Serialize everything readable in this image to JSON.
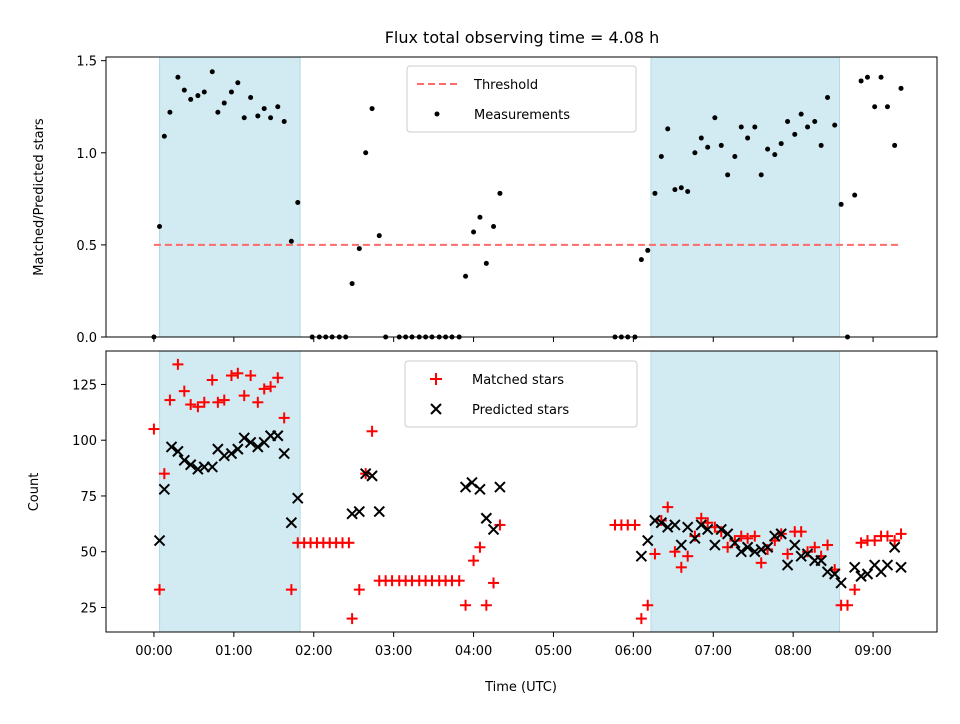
{
  "title": "Flux total observing time = 4.08 h",
  "colors": {
    "shade": "#add8e6",
    "threshold": "#ff6b6b",
    "measurement": "#000000",
    "matched": "#ff0000",
    "predicted": "#000000"
  },
  "chart_data": [
    {
      "type": "scatter",
      "ylabel": "Matched/Predicted stars",
      "xlim": [
        -0.6,
        9.8
      ],
      "ylim": [
        0,
        1.52
      ],
      "yticks": [
        0.0,
        0.5,
        1.0,
        1.5
      ],
      "ytick_labels": [
        "0.0",
        "0.5",
        "1.0",
        "1.5"
      ],
      "legend_position": "top-center",
      "shaded_intervals": [
        [
          0.07,
          1.83
        ],
        [
          6.22,
          8.58
        ]
      ],
      "threshold": {
        "name": "Threshold",
        "value": 0.5,
        "x_range": [
          0.0,
          9.33
        ]
      },
      "series": [
        {
          "name": "Measurements",
          "points": [
            [
              0.0,
              0.0
            ],
            [
              0.07,
              0.6
            ],
            [
              0.13,
              1.09
            ],
            [
              0.2,
              1.22
            ],
            [
              0.3,
              1.41
            ],
            [
              0.38,
              1.34
            ],
            [
              0.46,
              1.29
            ],
            [
              0.55,
              1.31
            ],
            [
              0.63,
              1.33
            ],
            [
              0.73,
              1.44
            ],
            [
              0.8,
              1.22
            ],
            [
              0.88,
              1.27
            ],
            [
              0.97,
              1.33
            ],
            [
              1.05,
              1.38
            ],
            [
              1.13,
              1.19
            ],
            [
              1.21,
              1.3
            ],
            [
              1.3,
              1.2
            ],
            [
              1.38,
              1.24
            ],
            [
              1.46,
              1.19
            ],
            [
              1.55,
              1.25
            ],
            [
              1.63,
              1.17
            ],
            [
              1.72,
              0.52
            ],
            [
              1.8,
              0.73
            ],
            [
              1.98,
              0.0
            ],
            [
              2.07,
              0.0
            ],
            [
              2.15,
              0.0
            ],
            [
              2.23,
              0.0
            ],
            [
              2.32,
              0.0
            ],
            [
              2.4,
              0.0
            ],
            [
              2.48,
              0.29
            ],
            [
              2.57,
              0.48
            ],
            [
              2.65,
              1.0
            ],
            [
              2.73,
              1.24
            ],
            [
              2.82,
              0.55
            ],
            [
              2.9,
              0.0
            ],
            [
              3.07,
              0.0
            ],
            [
              3.15,
              0.0
            ],
            [
              3.23,
              0.0
            ],
            [
              3.32,
              0.0
            ],
            [
              3.4,
              0.0
            ],
            [
              3.48,
              0.0
            ],
            [
              3.57,
              0.0
            ],
            [
              3.65,
              0.0
            ],
            [
              3.73,
              0.0
            ],
            [
              3.82,
              0.0
            ],
            [
              3.9,
              0.33
            ],
            [
              4.0,
              0.57
            ],
            [
              4.08,
              0.65
            ],
            [
              4.16,
              0.4
            ],
            [
              4.25,
              0.6
            ],
            [
              4.33,
              0.78
            ],
            [
              5.77,
              0.0
            ],
            [
              5.85,
              0.0
            ],
            [
              5.93,
              0.0
            ],
            [
              6.02,
              0.0
            ],
            [
              6.1,
              0.42
            ],
            [
              6.18,
              0.47
            ],
            [
              6.27,
              0.78
            ],
            [
              6.35,
              0.98
            ],
            [
              6.43,
              1.13
            ],
            [
              6.52,
              0.8
            ],
            [
              6.6,
              0.81
            ],
            [
              6.68,
              0.79
            ],
            [
              6.77,
              1.0
            ],
            [
              6.85,
              1.08
            ],
            [
              6.93,
              1.03
            ],
            [
              7.02,
              1.19
            ],
            [
              7.1,
              1.04
            ],
            [
              7.18,
              0.88
            ],
            [
              7.27,
              0.98
            ],
            [
              7.35,
              1.14
            ],
            [
              7.43,
              1.08
            ],
            [
              7.52,
              1.14
            ],
            [
              7.6,
              0.88
            ],
            [
              7.68,
              1.02
            ],
            [
              7.77,
              0.99
            ],
            [
              7.85,
              1.05
            ],
            [
              7.93,
              1.17
            ],
            [
              8.02,
              1.1
            ],
            [
              8.1,
              1.21
            ],
            [
              8.18,
              1.14
            ],
            [
              8.27,
              1.17
            ],
            [
              8.35,
              1.04
            ],
            [
              8.43,
              1.3
            ],
            [
              8.52,
              1.15
            ],
            [
              8.6,
              0.72
            ],
            [
              8.68,
              0.0
            ],
            [
              8.77,
              0.77
            ],
            [
              8.85,
              1.39
            ],
            [
              8.93,
              1.41
            ],
            [
              9.02,
              1.25
            ],
            [
              9.1,
              1.41
            ],
            [
              9.18,
              1.25
            ],
            [
              9.27,
              1.04
            ],
            [
              9.35,
              1.35
            ]
          ]
        }
      ]
    },
    {
      "type": "scatter",
      "xlabel": "Time (UTC)",
      "ylabel": "Count",
      "xlim": [
        -0.6,
        9.8
      ],
      "ylim": [
        14,
        140
      ],
      "xticks": [
        0,
        1,
        2,
        3,
        4,
        5,
        6,
        7,
        8,
        9
      ],
      "xtick_labels": [
        "00:00",
        "01:00",
        "02:00",
        "03:00",
        "04:00",
        "05:00",
        "06:00",
        "07:00",
        "08:00",
        "09:00"
      ],
      "yticks": [
        25,
        50,
        75,
        100,
        125
      ],
      "ytick_labels": [
        "25",
        "50",
        "75",
        "100",
        "125"
      ],
      "legend_position": "top-center",
      "shaded_intervals": [
        [
          0.07,
          1.83
        ],
        [
          6.22,
          8.58
        ]
      ],
      "series": [
        {
          "name": "Matched stars",
          "marker": "plus",
          "points": [
            [
              0.0,
              105
            ],
            [
              0.07,
              33
            ],
            [
              0.13,
              85
            ],
            [
              0.2,
              118
            ],
            [
              0.3,
              134
            ],
            [
              0.38,
              122
            ],
            [
              0.46,
              116
            ],
            [
              0.55,
              115
            ],
            [
              0.63,
              117
            ],
            [
              0.73,
              127
            ],
            [
              0.8,
              117
            ],
            [
              0.88,
              118
            ],
            [
              0.97,
              129
            ],
            [
              1.05,
              130
            ],
            [
              1.13,
              120
            ],
            [
              1.21,
              129
            ],
            [
              1.3,
              117
            ],
            [
              1.38,
              123
            ],
            [
              1.46,
              124
            ],
            [
              1.55,
              128
            ],
            [
              1.63,
              110
            ],
            [
              1.72,
              33
            ],
            [
              1.8,
              54
            ],
            [
              1.88,
              54
            ],
            [
              1.96,
              54
            ],
            [
              2.04,
              54
            ],
            [
              2.12,
              54
            ],
            [
              2.2,
              54
            ],
            [
              2.28,
              54
            ],
            [
              2.36,
              54
            ],
            [
              2.44,
              54
            ],
            [
              2.48,
              20
            ],
            [
              2.57,
              33
            ],
            [
              2.65,
              85
            ],
            [
              2.73,
              104
            ],
            [
              2.82,
              37
            ],
            [
              2.9,
              37
            ],
            [
              2.98,
              37
            ],
            [
              3.07,
              37
            ],
            [
              3.15,
              37
            ],
            [
              3.23,
              37
            ],
            [
              3.32,
              37
            ],
            [
              3.4,
              37
            ],
            [
              3.48,
              37
            ],
            [
              3.57,
              37
            ],
            [
              3.65,
              37
            ],
            [
              3.73,
              37
            ],
            [
              3.82,
              37
            ],
            [
              3.9,
              26
            ],
            [
              4.0,
              46
            ],
            [
              4.08,
              52
            ],
            [
              4.16,
              26
            ],
            [
              4.25,
              36
            ],
            [
              4.33,
              62
            ],
            [
              5.77,
              62
            ],
            [
              5.85,
              62
            ],
            [
              5.93,
              62
            ],
            [
              6.02,
              62
            ],
            [
              6.1,
              20
            ],
            [
              6.18,
              26
            ],
            [
              6.27,
              49
            ],
            [
              6.35,
              64
            ],
            [
              6.43,
              70
            ],
            [
              6.52,
              50
            ],
            [
              6.6,
              43
            ],
            [
              6.68,
              48
            ],
            [
              6.77,
              57
            ],
            [
              6.85,
              65
            ],
            [
              6.93,
              63
            ],
            [
              7.02,
              61
            ],
            [
              7.1,
              59
            ],
            [
              7.18,
              52
            ],
            [
              7.27,
              55
            ],
            [
              7.35,
              57
            ],
            [
              7.43,
              56
            ],
            [
              7.52,
              57
            ],
            [
              7.6,
              45
            ],
            [
              7.68,
              51
            ],
            [
              7.77,
              55
            ],
            [
              7.85,
              58
            ],
            [
              7.93,
              49
            ],
            [
              8.02,
              59
            ],
            [
              8.1,
              59
            ],
            [
              8.18,
              50
            ],
            [
              8.27,
              52
            ],
            [
              8.35,
              48
            ],
            [
              8.43,
              53
            ],
            [
              8.52,
              42
            ],
            [
              8.6,
              26
            ],
            [
              8.68,
              26
            ],
            [
              8.77,
              33
            ],
            [
              8.85,
              54
            ],
            [
              8.93,
              55
            ],
            [
              9.02,
              55
            ],
            [
              9.1,
              57
            ],
            [
              9.18,
              57
            ],
            [
              9.27,
              55
            ],
            [
              9.35,
              58
            ]
          ]
        },
        {
          "name": "Predicted stars",
          "marker": "x",
          "points": [
            [
              0.07,
              55
            ],
            [
              0.13,
              78
            ],
            [
              0.22,
              97
            ],
            [
              0.3,
              95
            ],
            [
              0.38,
              91
            ],
            [
              0.46,
              89
            ],
            [
              0.55,
              87
            ],
            [
              0.63,
              88
            ],
            [
              0.73,
              88
            ],
            [
              0.8,
              96
            ],
            [
              0.88,
              93
            ],
            [
              0.97,
              94
            ],
            [
              1.05,
              96
            ],
            [
              1.13,
              101
            ],
            [
              1.21,
              99
            ],
            [
              1.3,
              97
            ],
            [
              1.38,
              99
            ],
            [
              1.46,
              102
            ],
            [
              1.55,
              102
            ],
            [
              1.63,
              94
            ],
            [
              1.72,
              63
            ],
            [
              1.8,
              74
            ],
            [
              2.48,
              67
            ],
            [
              2.57,
              68
            ],
            [
              2.65,
              85
            ],
            [
              2.73,
              84
            ],
            [
              2.82,
              68
            ],
            [
              3.9,
              79
            ],
            [
              3.98,
              81
            ],
            [
              4.08,
              78
            ],
            [
              4.16,
              65
            ],
            [
              4.25,
              60
            ],
            [
              4.33,
              79
            ],
            [
              6.1,
              48
            ],
            [
              6.18,
              55
            ],
            [
              6.27,
              64
            ],
            [
              6.35,
              63
            ],
            [
              6.43,
              61
            ],
            [
              6.52,
              62
            ],
            [
              6.6,
              53
            ],
            [
              6.68,
              61
            ],
            [
              6.77,
              56
            ],
            [
              6.85,
              62
            ],
            [
              6.93,
              60
            ],
            [
              7.02,
              53
            ],
            [
              7.1,
              60
            ],
            [
              7.18,
              58
            ],
            [
              7.27,
              54
            ],
            [
              7.35,
              50
            ],
            [
              7.43,
              52
            ],
            [
              7.52,
              50
            ],
            [
              7.6,
              51
            ],
            [
              7.68,
              52
            ],
            [
              7.77,
              57
            ],
            [
              7.85,
              58
            ],
            [
              7.93,
              44
            ],
            [
              8.02,
              53
            ],
            [
              8.1,
              48
            ],
            [
              8.18,
              49
            ],
            [
              8.27,
              46
            ],
            [
              8.35,
              46
            ],
            [
              8.43,
              41
            ],
            [
              8.52,
              40
            ],
            [
              8.6,
              36
            ],
            [
              8.77,
              43
            ],
            [
              8.85,
              39
            ],
            [
              8.93,
              40
            ],
            [
              9.02,
              44
            ],
            [
              9.1,
              41
            ],
            [
              9.18,
              44
            ],
            [
              9.27,
              52
            ],
            [
              9.35,
              43
            ]
          ]
        }
      ]
    }
  ]
}
